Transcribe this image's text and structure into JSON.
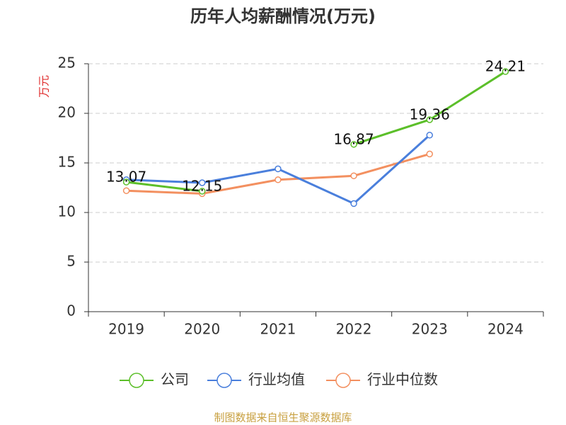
{
  "chart_data": {
    "type": "line",
    "title": "历年人均薪酬情况(万元)",
    "y_label": "万元",
    "categories": [
      "2019",
      "2020",
      "2021",
      "2022",
      "2023",
      "2024"
    ],
    "series": [
      {
        "name": "公司",
        "color": "#5cbf2a",
        "values": [
          13.07,
          12.15,
          null,
          16.87,
          19.36,
          24.21
        ]
      },
      {
        "name": "行业均值",
        "color": "#4a7fdc",
        "values": [
          13.3,
          13.0,
          14.4,
          10.9,
          17.8,
          null
        ]
      },
      {
        "name": "行业中位数",
        "color": "#f39060",
        "values": [
          12.2,
          11.9,
          13.3,
          13.7,
          15.9,
          null
        ]
      }
    ],
    "ylim": [
      0,
      25
    ],
    "yticks": [
      0,
      5,
      10,
      15,
      20,
      25
    ],
    "grid": true,
    "labeled_series": 0,
    "legend": "bottom",
    "source": "制图数据来自恒生聚源数据库"
  }
}
